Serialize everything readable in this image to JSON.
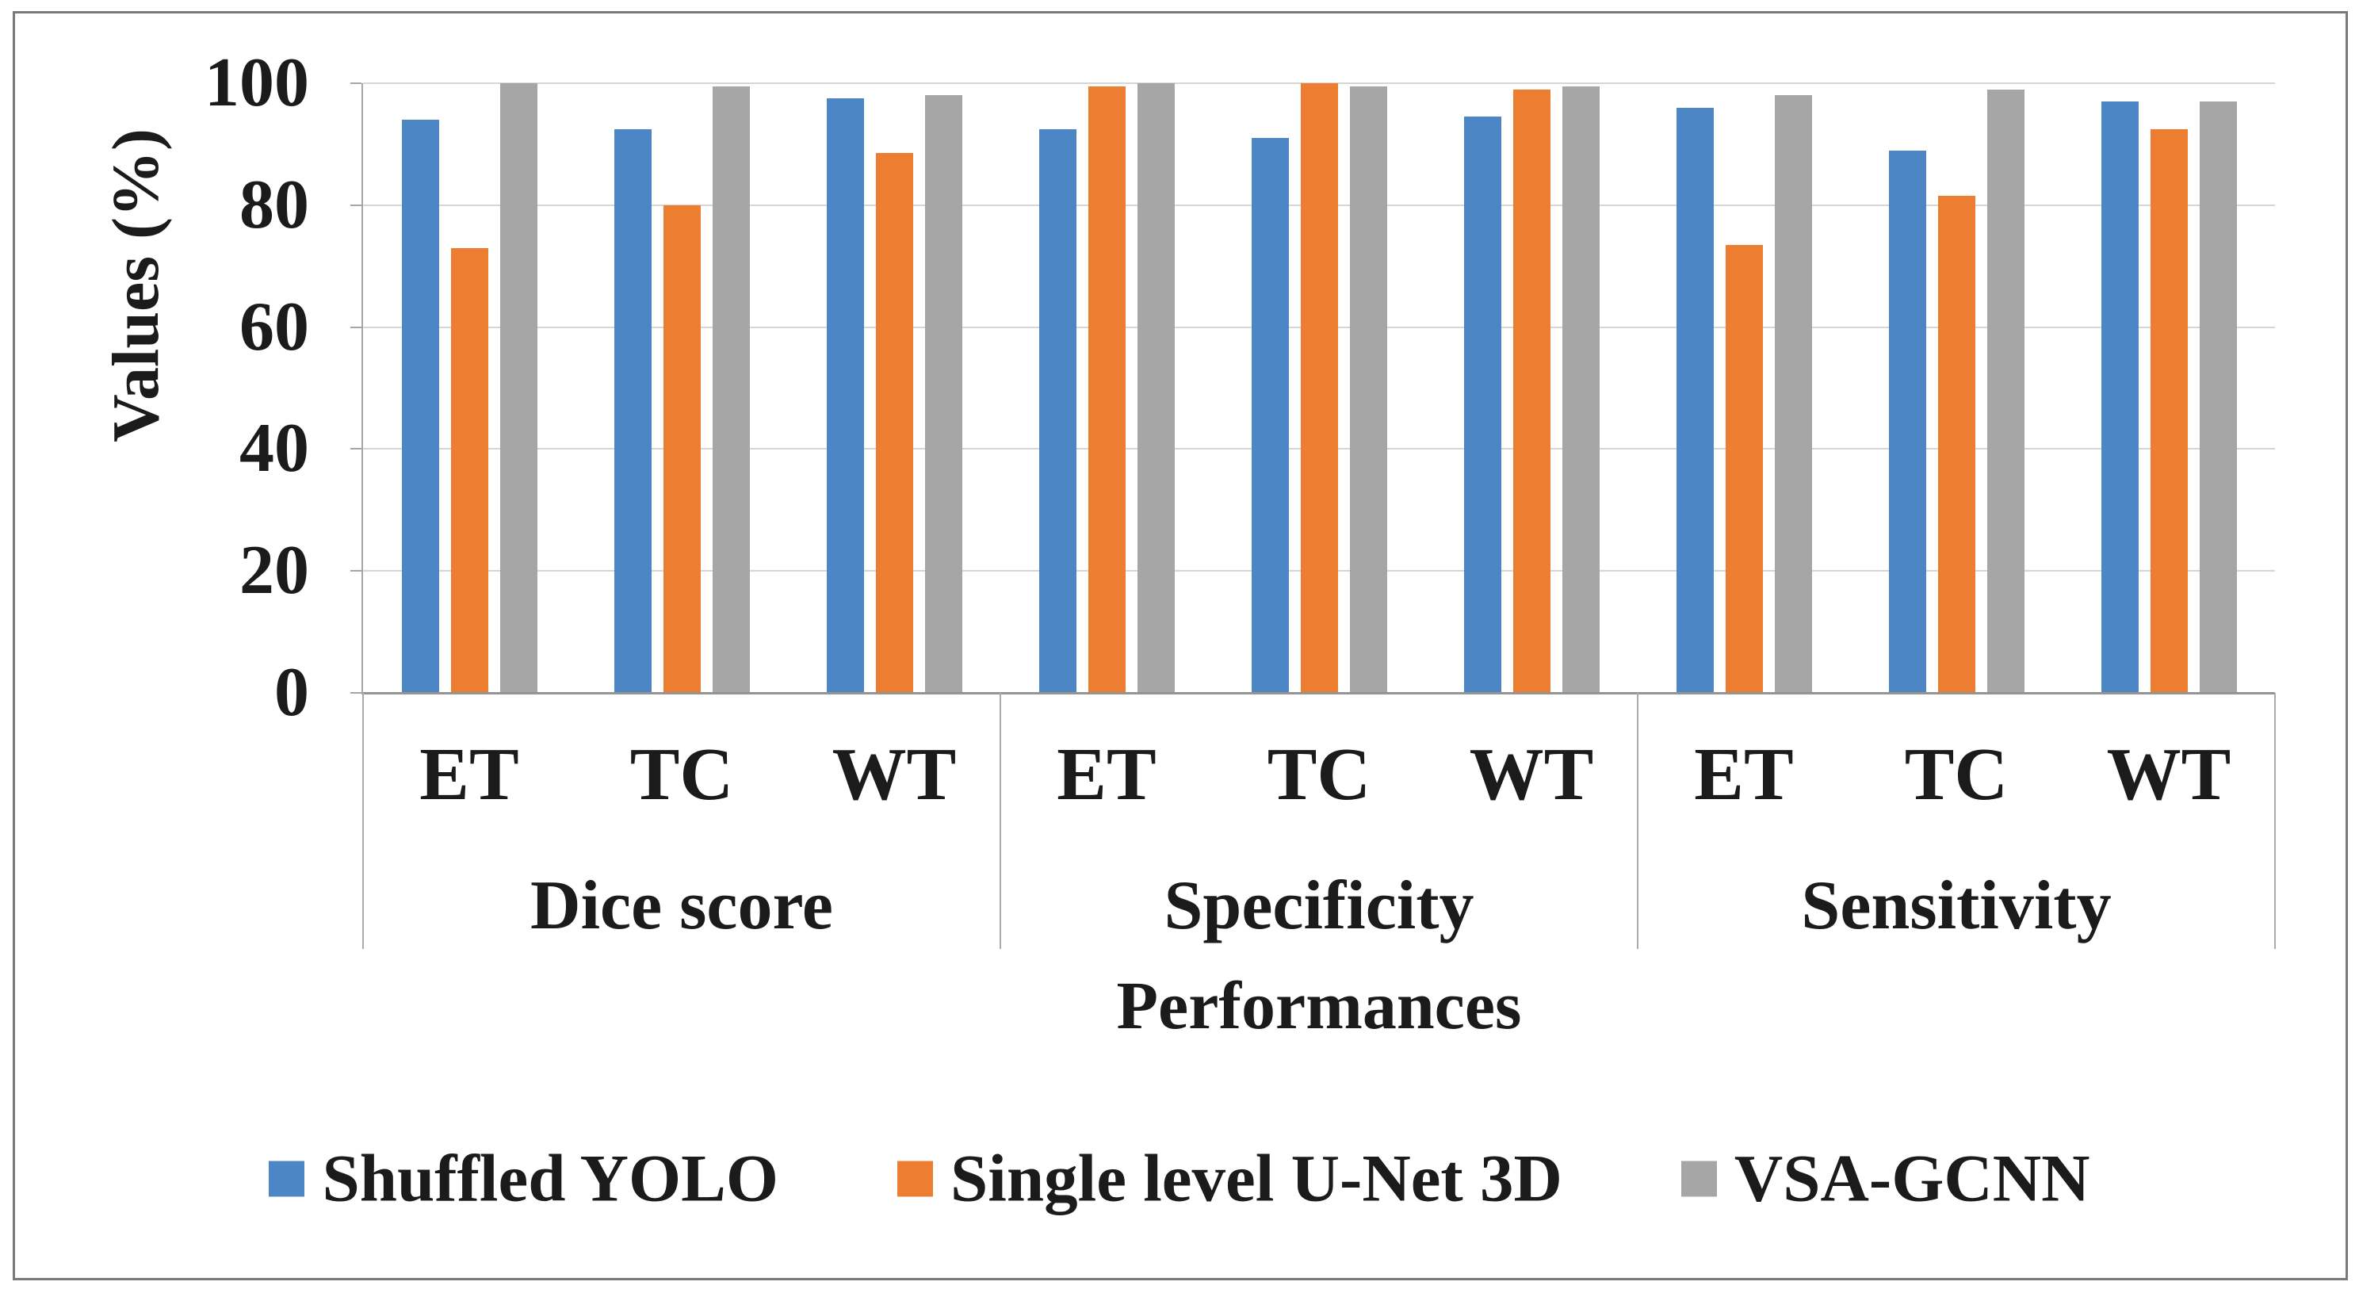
{
  "figure": {
    "background": "#ffffff",
    "border_color": "#7a7a7a"
  },
  "chart_data": {
    "type": "bar",
    "title": "",
    "ylabel": "Values (%)",
    "xlabel": "Performances",
    "ylim": [
      0,
      100
    ],
    "yticks": [
      0,
      20,
      40,
      60,
      80,
      100
    ],
    "grid": true,
    "legend_position": "bottom",
    "groups": [
      {
        "label": "Dice score",
        "categories": [
          "ET",
          "TC",
          "WT"
        ]
      },
      {
        "label": "Specificity",
        "categories": [
          "ET",
          "TC",
          "WT"
        ]
      },
      {
        "label": "Sensitivity",
        "categories": [
          "ET",
          "TC",
          "WT"
        ]
      }
    ],
    "series": [
      {
        "name": "Shuffled YOLO",
        "color": "#4d86c4",
        "values": [
          94,
          92.5,
          97.5,
          92.5,
          91,
          94.5,
          96,
          89,
          97
        ]
      },
      {
        "name": "Single level U-Net 3D",
        "color": "#ed7d31",
        "values": [
          73,
          80,
          88.5,
          99.5,
          100,
          99,
          73.5,
          81.5,
          92.5
        ]
      },
      {
        "name": "VSA-GCNN",
        "color": "#a6a6a6",
        "values": [
          100,
          99.5,
          98,
          100,
          99.5,
          99.5,
          98,
          99,
          97
        ]
      }
    ],
    "colors": {
      "gridline": "#d6d6d6",
      "axis": "#949494",
      "minor_axis": "#a6a6a6",
      "divider": "#ababab",
      "text": "#1b1b1b"
    }
  }
}
